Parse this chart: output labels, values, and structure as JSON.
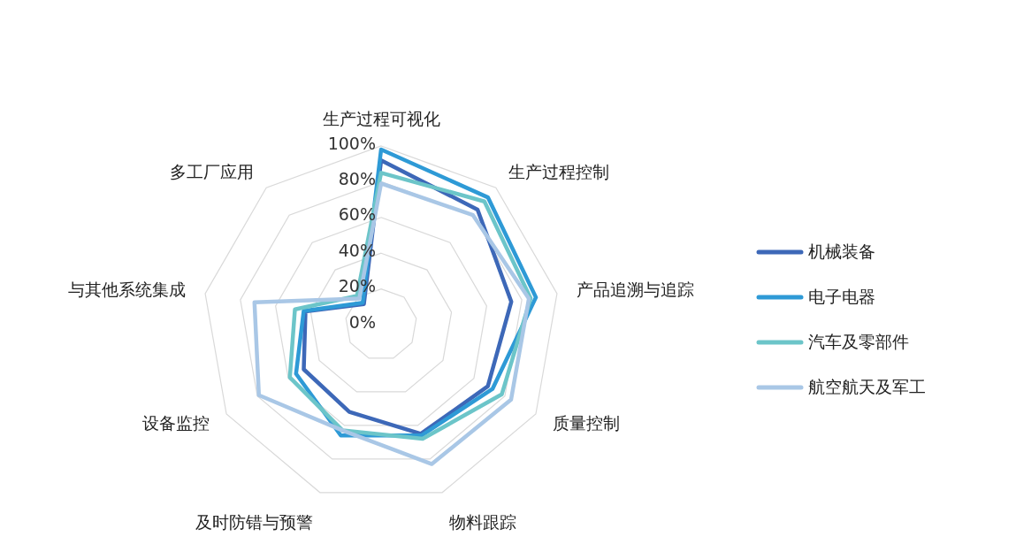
{
  "chart_data": {
    "type": "radar",
    "categories": [
      "生产过程可视化",
      "生产过程控制",
      "产品追溯与追踪",
      "质量控制",
      "物料跟踪",
      "及时防错与预警",
      "设备监控",
      "与其他系统集成",
      "多工厂应用"
    ],
    "series": [
      {
        "name": "机械装备",
        "color": "#3d68b8",
        "values": [
          92,
          84,
          74,
          69,
          65,
          52,
          50,
          43,
          15
        ]
      },
      {
        "name": "电子电器",
        "color": "#2e9ad6",
        "values": [
          98,
          93,
          88,
          72,
          66,
          66,
          55,
          44,
          16
        ]
      },
      {
        "name": "汽车及零部件",
        "color": "#6cc5c9",
        "values": [
          85,
          90,
          85,
          78,
          68,
          63,
          59,
          49,
          21
        ]
      },
      {
        "name": "航空航天及军工",
        "color": "#a9c7e6",
        "values": [
          79,
          80,
          84,
          84,
          83,
          63,
          79,
          72,
          19
        ]
      }
    ],
    "ylim": [
      0,
      100
    ],
    "yticks": [
      {
        "value": 0,
        "label": "0%"
      },
      {
        "value": 20,
        "label": "20%"
      },
      {
        "value": 40,
        "label": "40%"
      },
      {
        "value": 60,
        "label": "60%"
      },
      {
        "value": 80,
        "label": "80%"
      },
      {
        "value": 100,
        "label": "100%"
      }
    ],
    "grid": true,
    "legend": "right"
  }
}
